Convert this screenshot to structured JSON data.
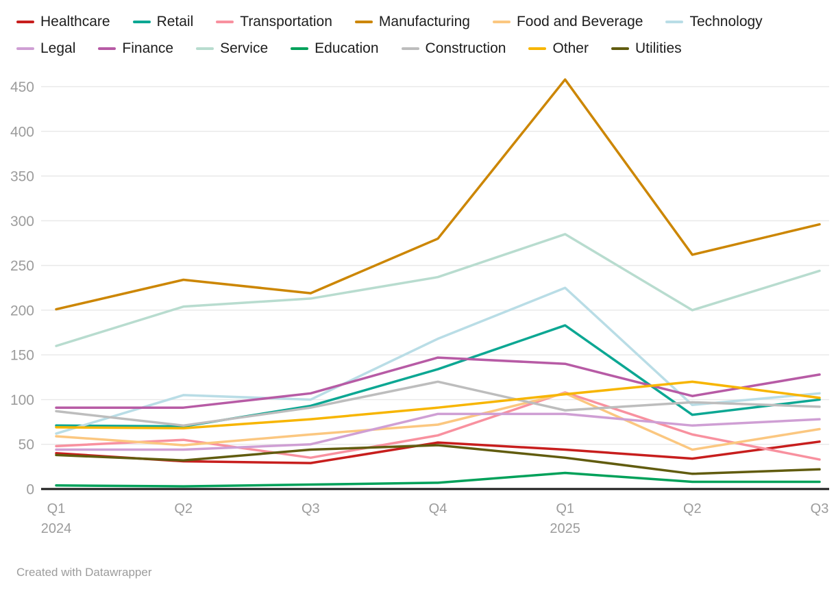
{
  "chart_data": {
    "type": "line",
    "categories": [
      "Q1 2024",
      "Q2 2024",
      "Q3 2024",
      "Q4 2024",
      "Q1 2025",
      "Q2 2025",
      "Q3 2025"
    ],
    "x_ticks": [
      {
        "label": "Q1",
        "year": "2024"
      },
      {
        "label": "Q2",
        "year": ""
      },
      {
        "label": "Q3",
        "year": ""
      },
      {
        "label": "Q4",
        "year": ""
      },
      {
        "label": "Q1",
        "year": "2025"
      },
      {
        "label": "Q2",
        "year": ""
      },
      {
        "label": "Q3",
        "year": ""
      }
    ],
    "ylim": [
      0,
      450
    ],
    "y_tick_step": 50,
    "y_tick_labels": [
      "0",
      "50",
      "100",
      "150",
      "200",
      "250",
      "300",
      "350",
      "400",
      "450"
    ],
    "grid": true,
    "legend_position": "top",
    "legend_row_split": 6,
    "series": [
      {
        "name": "Healthcare",
        "color": "#c71e1d",
        "values": [
          40,
          31,
          29,
          52,
          44,
          34,
          53
        ]
      },
      {
        "name": "Retail",
        "color": "#0ca793",
        "values": [
          71,
          70,
          93,
          134,
          183,
          83,
          100
        ]
      },
      {
        "name": "Transportation",
        "color": "#f8919f",
        "values": [
          48,
          55,
          35,
          60,
          108,
          61,
          33
        ]
      },
      {
        "name": "Manufacturing",
        "color": "#cc8602",
        "values": [
          201,
          234,
          219,
          280,
          458,
          262,
          296
        ]
      },
      {
        "name": "Food and Beverage",
        "color": "#fbc780",
        "values": [
          59,
          49,
          61,
          72,
          107,
          44,
          67
        ]
      },
      {
        "name": "Technology",
        "color": "#b9dde6",
        "values": [
          62,
          105,
          100,
          168,
          225,
          94,
          107
        ]
      },
      {
        "name": "Legal",
        "color": "#cf9fd4",
        "values": [
          44,
          44,
          50,
          84,
          84,
          71,
          78
        ]
      },
      {
        "name": "Finance",
        "color": "#b75ba5",
        "values": [
          91,
          91,
          107,
          147,
          140,
          104,
          128
        ]
      },
      {
        "name": "Service",
        "color": "#b8dccf",
        "values": [
          160,
          204,
          213,
          237,
          285,
          200,
          244
        ]
      },
      {
        "name": "Education",
        "color": "#00a15a",
        "values": [
          4,
          3,
          5,
          7,
          18,
          8,
          8
        ]
      },
      {
        "name": "Construction",
        "color": "#bdbdbd",
        "values": [
          87,
          71,
          91,
          120,
          88,
          97,
          92
        ]
      },
      {
        "name": "Other",
        "color": "#f7b500",
        "values": [
          69,
          68,
          78,
          91,
          106,
          120,
          102
        ]
      },
      {
        "name": "Utilities",
        "color": "#615c0f",
        "values": [
          38,
          32,
          44,
          49,
          35,
          17,
          22
        ]
      }
    ],
    "axis_color": "#1a1a1a",
    "gridline_color": "#e9e9e9",
    "tick_label_color": "#9c9c9c"
  },
  "footer": {
    "credit": "Created with Datawrapper"
  }
}
